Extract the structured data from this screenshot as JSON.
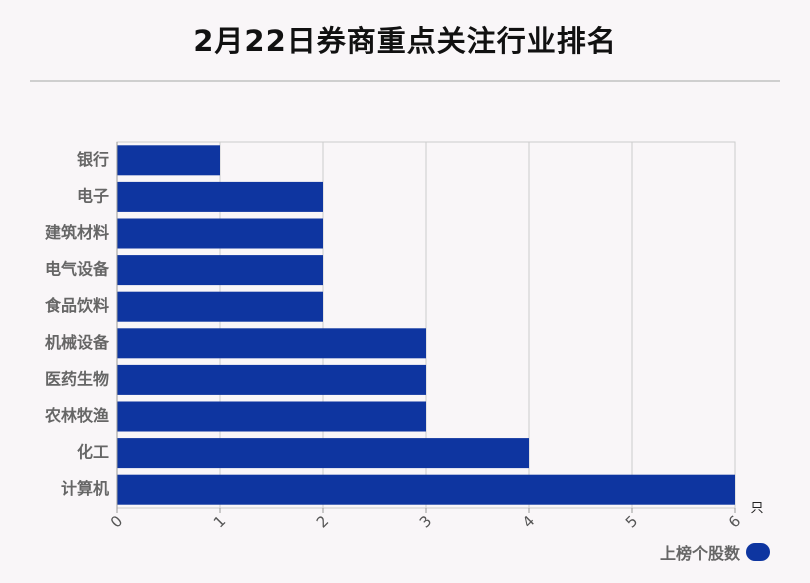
{
  "chart_data": {
    "type": "bar",
    "orientation": "horizontal",
    "title": "2月22日券商重点关注行业排名",
    "categories": [
      "银行",
      "电子",
      "建筑材料",
      "电气设备",
      "食品饮料",
      "机械设备",
      "医药生物",
      "农林牧渔",
      "化工",
      "计算机"
    ],
    "series": [
      {
        "name": "上榜个股数",
        "values": [
          1,
          2,
          2,
          2,
          2,
          3,
          3,
          3,
          4,
          6
        ]
      }
    ],
    "xlim": [
      0,
      6
    ],
    "xticks": [
      "0",
      "1",
      "2",
      "3",
      "4",
      "5",
      "6"
    ],
    "xunit": "只",
    "grid": true,
    "legend_position": "bottom-right",
    "bar_color": "#0e35a0"
  }
}
